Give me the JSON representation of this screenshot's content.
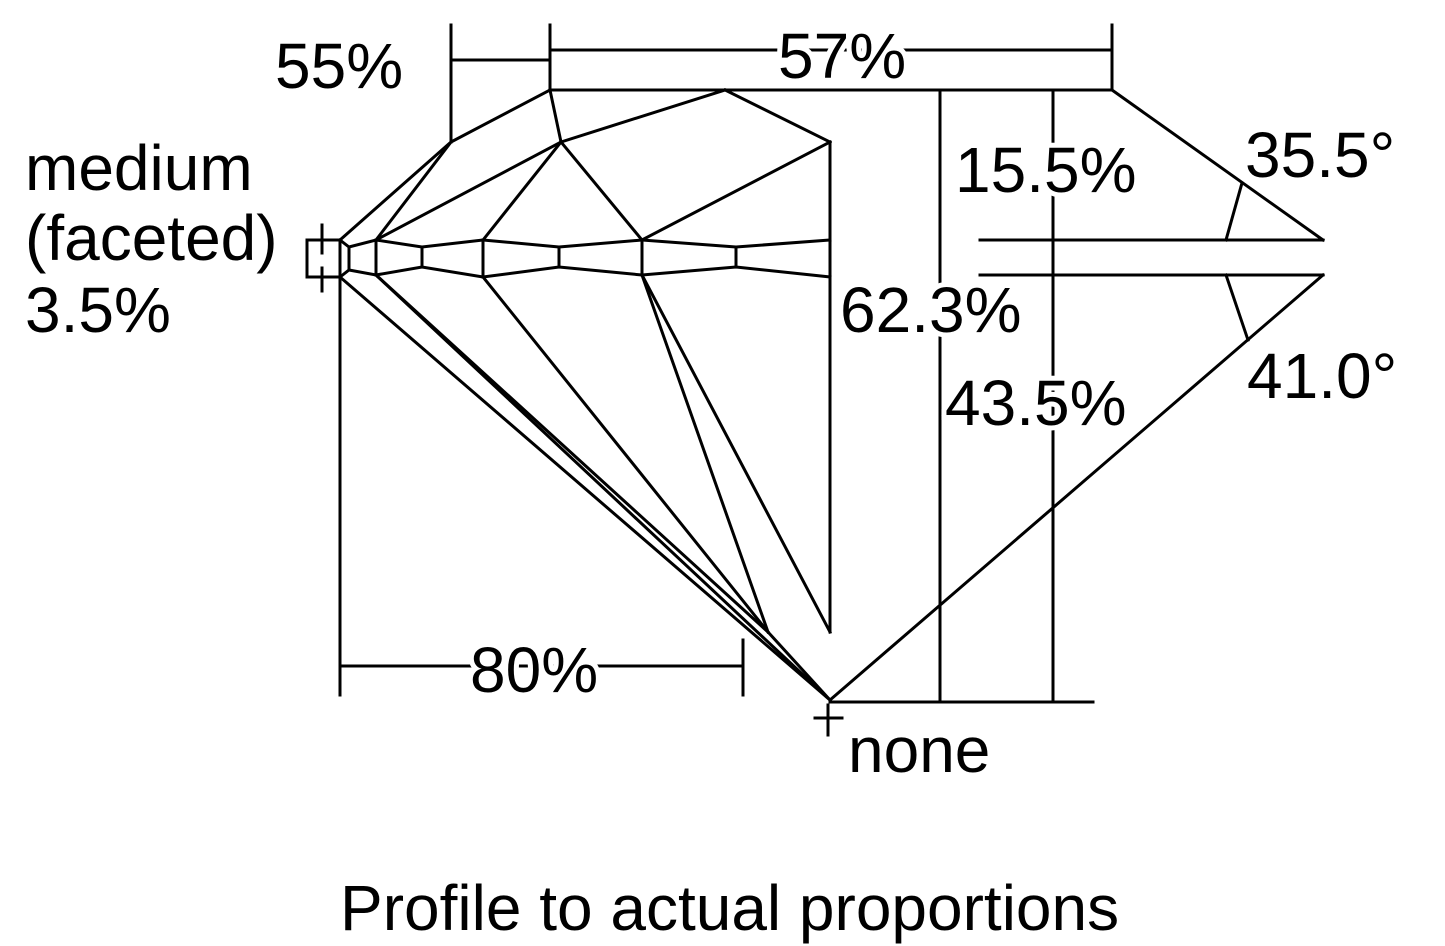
{
  "labels": {
    "table_pct": "57%",
    "star_length": "55%",
    "girdle_line1": "medium",
    "girdle_line2": "(faceted)",
    "girdle_pct": "3.5%",
    "crown_height": "15.5%",
    "crown_angle": "35.5°",
    "total_depth": "62.3%",
    "pavilion_depth": "43.5%",
    "pavilion_angle": "41.0°",
    "lower_half_length": "80%",
    "culet": "none"
  },
  "caption": "Profile to actual proportions"
}
